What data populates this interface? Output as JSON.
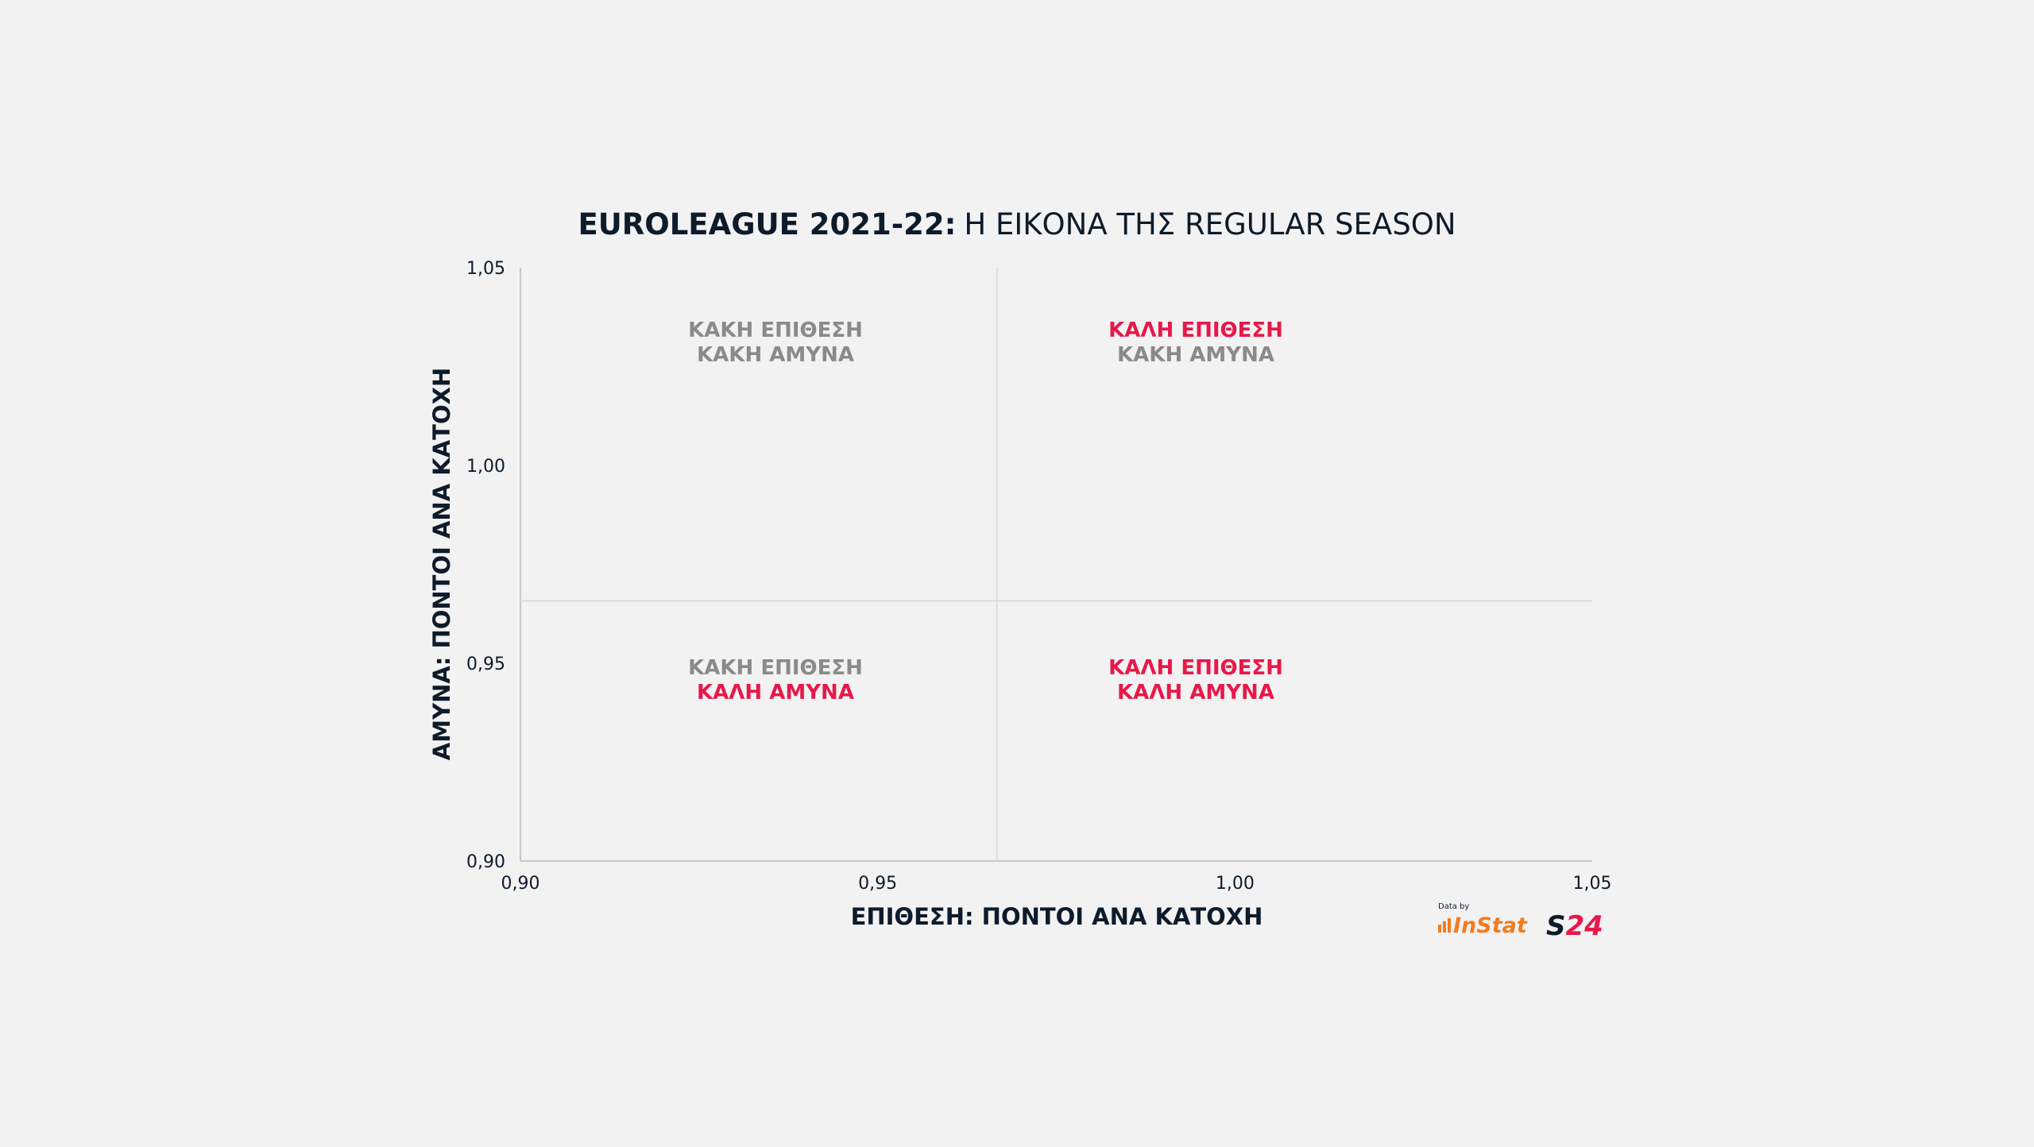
{
  "chart_data": {
    "type": "scatter",
    "title_bold": "EUROLEAGUE 2021-22:",
    "title_rest": "Η ΕΙΚΟΝΑ ΤΗΣ REGULAR SEASON",
    "xlabel": "ΕΠΙΘΕΣΗ: ΠΟΝΤΟΙ ΑΝΑ ΚΑΤΟΧΗ",
    "ylabel": "ΑΜΥΝΑ: ΠΟΝΤΟΙ ΑΝΑ ΚΑΤΟΧΗ",
    "xlim": [
      0.9,
      1.05
    ],
    "ylim": [
      0.9,
      1.05
    ],
    "x_ticks": [
      {
        "value": 0.9,
        "label": "0,90"
      },
      {
        "value": 0.95,
        "label": "0,95"
      },
      {
        "value": 1.0,
        "label": "1,00"
      },
      {
        "value": 1.05,
        "label": "1,05"
      }
    ],
    "y_ticks": [
      {
        "value": 0.9,
        "label": "0,90"
      },
      {
        "value": 0.95,
        "label": "0,95"
      },
      {
        "value": 1.0,
        "label": "1,00"
      },
      {
        "value": 1.05,
        "label": "1,05"
      }
    ],
    "x_divider": 0.9667,
    "y_divider": 0.9658,
    "series": [],
    "quadrants": [
      {
        "id": "top-left",
        "offense": "ΚΑΚΗ ΕΠΙΘΕΣΗ",
        "offense_good": false,
        "defense": "ΚΑΚΗ ΑΜΥΝΑ",
        "defense_good": false
      },
      {
        "id": "top-right",
        "offense": "ΚΑΛΗ ΕΠΙΘΕΣΗ",
        "offense_good": true,
        "defense": "ΚΑΚΗ ΑΜΥΝΑ",
        "defense_good": false
      },
      {
        "id": "bottom-left",
        "offense": "ΚΑΚΗ ΕΠΙΘΕΣΗ",
        "offense_good": false,
        "defense": "ΚΑΛΗ ΑΜΥΝΑ",
        "defense_good": true
      },
      {
        "id": "bottom-right",
        "offense": "ΚΑΛΗ ΕΠΙΘΕΣΗ",
        "offense_good": true,
        "defense": "ΚΑΛΗ ΑΜΥΝΑ",
        "defense_good": true
      }
    ]
  },
  "branding": {
    "data_by": "Data by",
    "instat": "InStat",
    "s24": "S24"
  },
  "colors": {
    "background": "#f2f2f2",
    "title": "#0d1b2a",
    "good": "#e8184a",
    "bad": "#8a8a8a",
    "axis": "#c8c8c8",
    "divider": "#dcdcdc",
    "instat": "#f47b20"
  }
}
